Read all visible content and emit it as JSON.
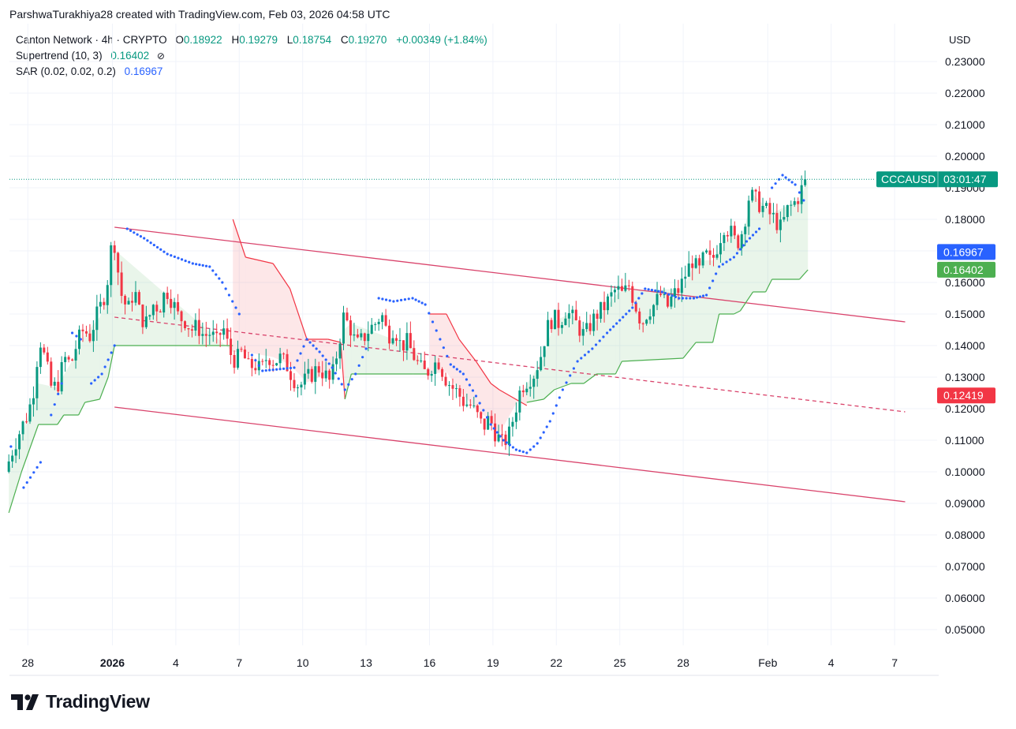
{
  "header": {
    "author_line": "ParshwaTurakhiya28 created with TradingView.com, Feb 03, 2026 04:58 UTC"
  },
  "legend": {
    "symbol": "Canton Network · 4h · CRYPTO",
    "o_label": "O",
    "o_value": "0.18922",
    "h_label": "H",
    "h_value": "0.19279",
    "l_label": "L",
    "l_value": "0.18754",
    "c_label": "C",
    "c_value": "0.19270",
    "change": "+0.00349 (+1.84%)",
    "supertrend_label": "Supertrend (10, 3)",
    "supertrend_value": "0.16402",
    "supertrend_icon": "hidden-eye-icon",
    "sar_label": "SAR (0.02, 0.02, 0.2)",
    "sar_value": "0.16967"
  },
  "currency": "USD",
  "brand": {
    "name": "TradingView"
  },
  "colors": {
    "up": "#089981",
    "down": "#f23645",
    "supertrend_up": "#4caf50",
    "supertrend_down": "#f23645",
    "sar": "#2962ff",
    "channel": "#d9436b"
  },
  "chart_data": {
    "type": "candlestick",
    "symbol": "CCCAUSD",
    "timeframe": "4h",
    "y_axis": {
      "ticks": [
        "0.23000",
        "0.22000",
        "0.21000",
        "0.20000",
        "0.19000",
        "0.18000",
        "0.17000",
        "0.16000",
        "0.15000",
        "0.14000",
        "0.13000",
        "0.12000",
        "0.11000",
        "0.10000",
        "0.09000",
        "0.08000",
        "0.07000",
        "0.06000",
        "0.05000"
      ],
      "range": [
        0.046,
        0.236
      ]
    },
    "x_axis": {
      "ticks": [
        {
          "label": "28",
          "day": -4
        },
        {
          "label": "2026",
          "day": 0,
          "bold": true
        },
        {
          "label": "4",
          "day": 3
        },
        {
          "label": "7",
          "day": 6
        },
        {
          "label": "10",
          "day": 9
        },
        {
          "label": "13",
          "day": 12
        },
        {
          "label": "16",
          "day": 15
        },
        {
          "label": "19",
          "day": 18
        },
        {
          "label": "22",
          "day": 21
        },
        {
          "label": "25",
          "day": 24
        },
        {
          "label": "28",
          "day": 27
        },
        {
          "label": "Feb",
          "day": 31
        },
        {
          "label": "4",
          "day": 34
        },
        {
          "label": "7",
          "day": 37
        }
      ]
    },
    "price_path": [
      [
        -4.9,
        0.1
      ],
      [
        -4.5,
        0.108
      ],
      [
        -4.2,
        0.113
      ],
      [
        -3.8,
        0.119
      ],
      [
        -3.5,
        0.128
      ],
      [
        -3.3,
        0.143
      ],
      [
        -3.0,
        0.135
      ],
      [
        -2.7,
        0.126
      ],
      [
        -2.4,
        0.128
      ],
      [
        -2.1,
        0.136
      ],
      [
        -1.8,
        0.134
      ],
      [
        -1.5,
        0.141
      ],
      [
        -1.2,
        0.145
      ],
      [
        -0.9,
        0.143
      ],
      [
        -0.6,
        0.149
      ],
      [
        -0.3,
        0.154
      ],
      [
        -0.1,
        0.159
      ],
      [
        0.2,
        0.176
      ],
      [
        0.4,
        0.165
      ],
      [
        0.6,
        0.156
      ],
      [
        0.9,
        0.151
      ],
      [
        1.2,
        0.158
      ],
      [
        1.5,
        0.149
      ],
      [
        1.8,
        0.147
      ],
      [
        2.1,
        0.153
      ],
      [
        2.4,
        0.152
      ],
      [
        2.7,
        0.158
      ],
      [
        3.0,
        0.154
      ],
      [
        3.3,
        0.149
      ],
      [
        3.6,
        0.148
      ],
      [
        3.9,
        0.145
      ],
      [
        4.2,
        0.146
      ],
      [
        4.5,
        0.143
      ],
      [
        4.8,
        0.144
      ],
      [
        5.1,
        0.141
      ],
      [
        5.4,
        0.146
      ],
      [
        5.7,
        0.138
      ],
      [
        6.0,
        0.135
      ],
      [
        6.3,
        0.138
      ],
      [
        6.6,
        0.133
      ],
      [
        6.9,
        0.134
      ],
      [
        7.2,
        0.132
      ],
      [
        7.5,
        0.137
      ],
      [
        7.8,
        0.135
      ],
      [
        8.1,
        0.136
      ],
      [
        8.4,
        0.134
      ],
      [
        8.7,
        0.13
      ],
      [
        9.0,
        0.127
      ],
      [
        9.3,
        0.129
      ],
      [
        9.6,
        0.131
      ],
      [
        9.9,
        0.133
      ],
      [
        10.2,
        0.131
      ],
      [
        10.5,
        0.128
      ],
      [
        10.8,
        0.138
      ],
      [
        11.1,
        0.149
      ],
      [
        11.4,
        0.146
      ],
      [
        11.7,
        0.14
      ],
      [
        12.0,
        0.142
      ],
      [
        12.3,
        0.145
      ],
      [
        12.6,
        0.147
      ],
      [
        12.9,
        0.15
      ],
      [
        13.2,
        0.143
      ],
      [
        13.5,
        0.146
      ],
      [
        13.8,
        0.14
      ],
      [
        14.1,
        0.141
      ],
      [
        14.4,
        0.137
      ],
      [
        14.7,
        0.133
      ],
      [
        15.0,
        0.131
      ],
      [
        15.3,
        0.134
      ],
      [
        15.6,
        0.135
      ],
      [
        15.9,
        0.13
      ],
      [
        16.2,
        0.127
      ],
      [
        16.5,
        0.125
      ],
      [
        16.8,
        0.122
      ],
      [
        17.1,
        0.121
      ],
      [
        17.4,
        0.118
      ],
      [
        17.7,
        0.114
      ],
      [
        18.0,
        0.117
      ],
      [
        18.3,
        0.112
      ],
      [
        18.6,
        0.109
      ],
      [
        18.9,
        0.111
      ],
      [
        19.2,
        0.119
      ],
      [
        19.5,
        0.127
      ],
      [
        19.8,
        0.129
      ],
      [
        20.1,
        0.131
      ],
      [
        20.4,
        0.136
      ],
      [
        20.7,
        0.145
      ],
      [
        21.0,
        0.149
      ],
      [
        21.3,
        0.147
      ],
      [
        21.6,
        0.151
      ],
      [
        21.9,
        0.149
      ],
      [
        22.2,
        0.146
      ],
      [
        22.5,
        0.143
      ],
      [
        22.8,
        0.147
      ],
      [
        23.1,
        0.15
      ],
      [
        23.4,
        0.152
      ],
      [
        23.7,
        0.155
      ],
      [
        24.0,
        0.158
      ],
      [
        24.3,
        0.156
      ],
      [
        24.6,
        0.159
      ],
      [
        24.9,
        0.153
      ],
      [
        25.2,
        0.147
      ],
      [
        25.5,
        0.151
      ],
      [
        25.8,
        0.153
      ],
      [
        26.1,
        0.156
      ],
      [
        26.4,
        0.152
      ],
      [
        26.7,
        0.156
      ],
      [
        27.0,
        0.158
      ],
      [
        27.3,
        0.163
      ],
      [
        27.6,
        0.167
      ],
      [
        27.9,
        0.163
      ],
      [
        28.2,
        0.169
      ],
      [
        28.5,
        0.166
      ],
      [
        28.8,
        0.172
      ],
      [
        29.1,
        0.178
      ],
      [
        29.4,
        0.176
      ],
      [
        29.7,
        0.172
      ],
      [
        30.0,
        0.177
      ],
      [
        30.3,
        0.188
      ],
      [
        30.6,
        0.186
      ],
      [
        30.9,
        0.184
      ],
      [
        31.2,
        0.182
      ],
      [
        31.5,
        0.18
      ],
      [
        31.8,
        0.177
      ],
      [
        32.1,
        0.183
      ],
      [
        32.4,
        0.185
      ],
      [
        32.7,
        0.188
      ],
      [
        32.9,
        0.1927
      ]
    ],
    "price_tags": [
      {
        "label": "CCCAUSD",
        "value": 0.1927,
        "countdown": "03:01:47",
        "color": "#089981"
      },
      {
        "label": "",
        "value": 0.16967,
        "text": "0.16967",
        "color": "#2962ff"
      },
      {
        "label": "",
        "value": 0.16402,
        "text": "0.16402",
        "color": "#4caf50"
      },
      {
        "label": "",
        "value": 0.12419,
        "text": "0.12419",
        "color": "#f23645"
      }
    ],
    "channel": {
      "upper": [
        [
          0.1,
          0.1775
        ],
        [
          37.5,
          0.1475
        ]
      ],
      "middle": [
        [
          0.1,
          0.149
        ],
        [
          37.5,
          0.119
        ]
      ],
      "lower": [
        [
          0.1,
          0.1205
        ],
        [
          37.5,
          0.0905
        ]
      ]
    },
    "supertrend_points": [
      [
        -4.9,
        0.087
      ],
      [
        -4.3,
        0.1
      ],
      [
        -3.5,
        0.115
      ],
      [
        -2.6,
        0.115
      ],
      [
        -2.3,
        0.118
      ],
      [
        -1.6,
        0.118
      ],
      [
        -1.3,
        0.122
      ],
      [
        -0.6,
        0.123
      ],
      [
        -0.2,
        0.13
      ],
      [
        0.1,
        0.14
      ],
      [
        5.7,
        0.14
      ],
      [
        5.7,
        0.18
      ],
      [
        6.3,
        0.168
      ],
      [
        7.6,
        0.166
      ],
      [
        8.4,
        0.158
      ],
      [
        9.2,
        0.142
      ],
      [
        10.2,
        0.142
      ],
      [
        10.8,
        0.141
      ],
      [
        11.0,
        0.123
      ],
      [
        11.3,
        0.131
      ],
      [
        14.2,
        0.131
      ],
      [
        15.0,
        0.131
      ],
      [
        15.0,
        0.15
      ],
      [
        15.8,
        0.15
      ],
      [
        16.4,
        0.142
      ],
      [
        17.2,
        0.135
      ],
      [
        17.9,
        0.128
      ],
      [
        18.3,
        0.126
      ],
      [
        19.6,
        0.121
      ],
      [
        19.6,
        0.122
      ],
      [
        20.4,
        0.123
      ],
      [
        20.9,
        0.126
      ],
      [
        21.7,
        0.128
      ],
      [
        22.3,
        0.128
      ],
      [
        22.9,
        0.131
      ],
      [
        23.8,
        0.131
      ],
      [
        24.1,
        0.135
      ],
      [
        27.0,
        0.136
      ],
      [
        27.6,
        0.141
      ],
      [
        28.4,
        0.141
      ],
      [
        28.7,
        0.15
      ],
      [
        29.4,
        0.15
      ],
      [
        29.7,
        0.151
      ],
      [
        30.3,
        0.157
      ],
      [
        30.9,
        0.157
      ],
      [
        31.2,
        0.161
      ],
      [
        32.5,
        0.161
      ],
      [
        32.9,
        0.164
      ]
    ],
    "sar_points": [
      [
        -4.8,
        0.108
      ],
      [
        -4.2,
        0.095
      ],
      [
        -3.4,
        0.103
      ],
      [
        -2.9,
        0.118
      ],
      [
        -2.4,
        0.128
      ],
      [
        -1.9,
        0.144
      ],
      [
        -1.5,
        0.142
      ],
      [
        -1.0,
        0.128
      ],
      [
        -0.5,
        0.131
      ],
      [
        0.1,
        0.14
      ],
      [
        0.7,
        0.177
      ],
      [
        1.5,
        0.174
      ],
      [
        2.6,
        0.169
      ],
      [
        3.8,
        0.166
      ],
      [
        4.6,
        0.165
      ],
      [
        5.2,
        0.16
      ],
      [
        6.0,
        0.15
      ],
      [
        6.6,
        0.137
      ],
      [
        7.1,
        0.132
      ],
      [
        8.6,
        0.133
      ],
      [
        9.2,
        0.142
      ],
      [
        9.8,
        0.138
      ],
      [
        10.4,
        0.133
      ],
      [
        11.0,
        0.126
      ],
      [
        11.5,
        0.131
      ],
      [
        12.0,
        0.139
      ],
      [
        12.6,
        0.155
      ],
      [
        13.3,
        0.154
      ],
      [
        14.2,
        0.155
      ],
      [
        14.8,
        0.153
      ],
      [
        15.5,
        0.142
      ],
      [
        16.0,
        0.134
      ],
      [
        16.6,
        0.131
      ],
      [
        17.2,
        0.124
      ],
      [
        17.9,
        0.115
      ],
      [
        18.5,
        0.11
      ],
      [
        19.1,
        0.107
      ],
      [
        19.6,
        0.106
      ],
      [
        20.1,
        0.109
      ],
      [
        20.7,
        0.116
      ],
      [
        21.3,
        0.126
      ],
      [
        22.0,
        0.135
      ],
      [
        22.7,
        0.139
      ],
      [
        23.4,
        0.144
      ],
      [
        24.0,
        0.148
      ],
      [
        24.6,
        0.152
      ],
      [
        25.2,
        0.158
      ],
      [
        26.0,
        0.157
      ],
      [
        26.8,
        0.155
      ],
      [
        27.5,
        0.155
      ],
      [
        28.1,
        0.156
      ],
      [
        28.7,
        0.165
      ],
      [
        29.4,
        0.168
      ],
      [
        30.0,
        0.173
      ],
      [
        30.6,
        0.177
      ],
      [
        31.2,
        0.19
      ],
      [
        31.7,
        0.194
      ],
      [
        32.3,
        0.191
      ],
      [
        32.7,
        0.186
      ],
      [
        32.9,
        0.17
      ]
    ]
  }
}
